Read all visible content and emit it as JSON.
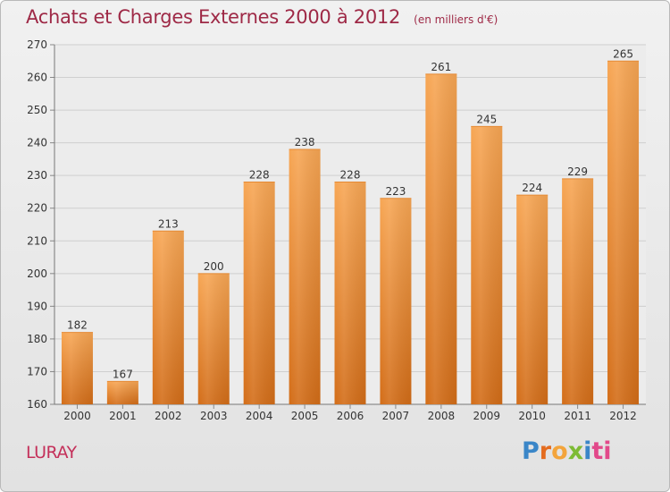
{
  "header": {
    "title": "Achats et Charges Externes 2000 à 2012",
    "subtitle": "(en milliers d'€)"
  },
  "footer": {
    "commune": "LURAY",
    "brand": "Proxiti"
  },
  "colors": {
    "title": "#9e2946",
    "commune": "#c4305a",
    "bar_light": "#f7a654",
    "bar_dark": "#d36d18",
    "grid": "#cfcfcf"
  },
  "chart_data": {
    "type": "bar",
    "title": "Achats et Charges Externes 2000 à 2012",
    "subtitle": "(en milliers d'€)",
    "categories": [
      "2000",
      "2001",
      "2002",
      "2003",
      "2004",
      "2005",
      "2006",
      "2007",
      "2008",
      "2009",
      "2010",
      "2011",
      "2012"
    ],
    "values": [
      182,
      167,
      213,
      200,
      228,
      238,
      228,
      223,
      261,
      245,
      224,
      229,
      265
    ],
    "ylim": [
      160,
      270
    ],
    "yticks": [
      160,
      170,
      180,
      190,
      200,
      210,
      220,
      230,
      240,
      250,
      260,
      270
    ],
    "grid": true,
    "data_labels": true
  }
}
